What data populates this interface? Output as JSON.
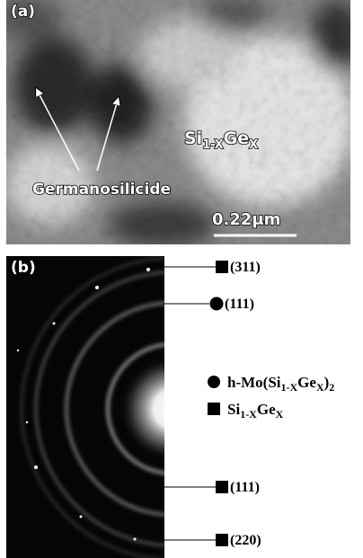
{
  "panel_a": {
    "label": "(a)",
    "phase_label": [
      "Si",
      "1-X",
      "Ge",
      "X"
    ],
    "arrow_label": "Germanosilicide",
    "scale_bar": "0.22μm"
  },
  "panel_b": {
    "label": "(b)",
    "reflections": [
      "(311)",
      "(111)",
      "(111)",
      "(220)"
    ],
    "legend": [
      [
        "h-Mo(Si",
        "1-X",
        "Ge",
        "X",
        ")",
        "2"
      ],
      [
        "Si",
        "1-X",
        "Ge",
        "X"
      ]
    ]
  }
}
